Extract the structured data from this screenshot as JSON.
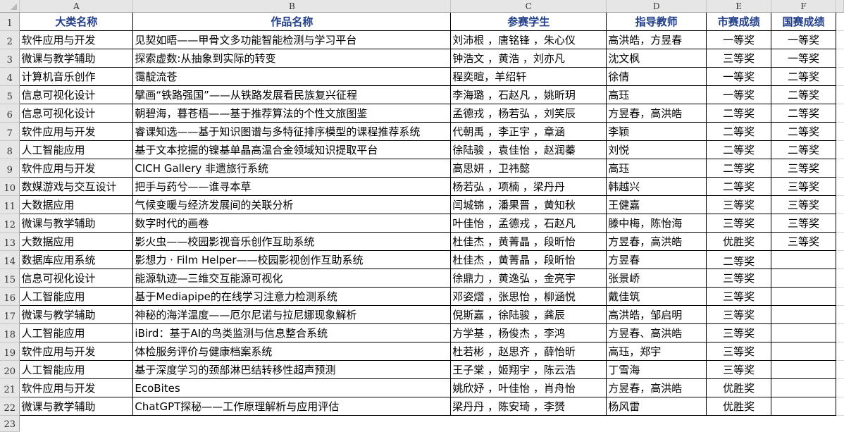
{
  "columns": [
    "A",
    "B",
    "C",
    "D",
    "E",
    "F"
  ],
  "header": [
    "大类名称",
    "作品名称",
    "参赛学生",
    "指导教师",
    "市赛成绩",
    "国赛成绩"
  ],
  "rows": [
    [
      "软件应用与开发",
      "见契如晤——甲骨文多功能智能检测与学习平台",
      "刘沛根 ，唐铭锋 ，朱心仪",
      "高洪皓，方昱春",
      "一等奖",
      "一等奖"
    ],
    [
      "微课与教学辅助",
      "探索虚数:从抽象到实际的转变",
      "钟浩文 ，黄浩 ，刘亦凡",
      "沈文枫",
      "三等奖",
      "一等奖"
    ],
    [
      "计算机音乐创作",
      "霭靛流苍",
      "程奕暄，羊绍轩",
      "徐倩",
      "一等奖",
      "二等奖"
    ],
    [
      "信息可视化设计",
      "擘画“铁路强国”——从铁路发展看民族复兴征程",
      "李海璐 ，石赵凡 ，姚昕玥",
      "高珏",
      "一等奖",
      "二等奖"
    ],
    [
      "信息可视化设计",
      "朝碧海，暮苍梧——基于推荐算法的个性文旅图鉴",
      "孟德戎 ，杨若弘 ，刘笑辰",
      "方昱春，高洪皓",
      "二等奖",
      "二等奖"
    ],
    [
      "软件应用与开发",
      "睿课知选——基于知识图谱与多特征排序模型的课程推荐系统",
      "代朝禹 ，李正宇 ，章涵",
      "李颖",
      "二等奖",
      "二等奖"
    ],
    [
      "人工智能应用",
      "基于文本挖掘的镍基单晶高温合金领域知识提取平台",
      "徐陆骏 ，袁佳怡 ，赵润蓁",
      "刘悦",
      "二等奖",
      "二等奖"
    ],
    [
      "软件应用与开发",
      "CICH Gallery 非遗旅行系统",
      "高思妍 ，卫祎懿",
      "高珏",
      "二等奖",
      "三等奖"
    ],
    [
      "数媒游戏与交互设计",
      "把手与药兮——谁寻本草",
      "杨若弘 ，项楠 ，梁丹丹",
      "韩越兴",
      "二等奖",
      "三等奖"
    ],
    [
      "大数据应用",
      "气候变暖与经济发展间的关联分析",
      "闫城锦 ，潘果晋 ，黄知秋",
      "王健嘉",
      "三等奖",
      "三等奖"
    ],
    [
      "微课与教学辅助",
      "数字时代的画卷",
      "叶佳怡 ，孟德戎 ，石赵凡",
      "滕中梅，陈怡海",
      "三等奖",
      "三等奖"
    ],
    [
      "大数据应用",
      "影火虫——校园影视音乐创作互助系统",
      "杜佳杰 ，黄菁晶 ，段昕怡",
      "方昱春，高洪皓",
      "优胜奖",
      "三等奖"
    ],
    [
      "数据库应用系统",
      "影想力 · Film  Helper——校园影视创作互助系统",
      "杜佳杰 ，黄菁晶 ，段昕怡",
      "方昱春",
      "二等奖",
      ""
    ],
    [
      "信息可视化设计",
      "能源轨迹—三维交互能源可视化",
      "徐鼎力 ，黄逸弘 ，金亮宇",
      "张景峤",
      "三等奖",
      ""
    ],
    [
      "人工智能应用",
      "基于Mediapipe的在线学习注意力检测系统",
      "邓姿熠 ，张思怡 ，柳涵悦",
      "戴佳筑",
      "三等奖",
      ""
    ],
    [
      "微课与教学辅助",
      "神秘的海洋温度——厄尔尼诺与拉尼娜现象解析",
      "倪斯嘉 ，徐陆骏 ，龚辰",
      "高洪皓，邹启明",
      "三等奖",
      ""
    ],
    [
      "人工智能应用",
      "iBird：基于AI的鸟类监测与信息整合系统",
      "方学基 ，杨俊杰 ，李鸿",
      "方昱春、高洪皓",
      "三等奖",
      ""
    ],
    [
      "软件应用与开发",
      "体检服务评价与健康档案系统",
      "杜若彬 ，赵思齐 ，薛怡昕",
      "高珏，郑宇",
      "三等奖",
      ""
    ],
    [
      "人工智能应用",
      "基于深度学习的颈部淋巴结转移性超声预测",
      "王子棠 ，姬翔宇 ，陈云浩",
      "丁雪海",
      "三等奖",
      ""
    ],
    [
      "软件应用与开发",
      "EcoBites",
      "姚欣妤 ，叶佳怡 ，肖舟怡",
      "方昱春，高洪皓",
      "优胜奖",
      ""
    ],
    [
      "微课与教学辅助",
      "ChatGPT探秘——工作原理解析与应用评估",
      "梁丹丹 ，陈安琦 ，李赟",
      "杨风雷",
      "优胜奖",
      ""
    ]
  ],
  "colors": {
    "header_text": "#1f3c88",
    "grid": "#000000",
    "headings_bg": "#e6e6e6"
  }
}
